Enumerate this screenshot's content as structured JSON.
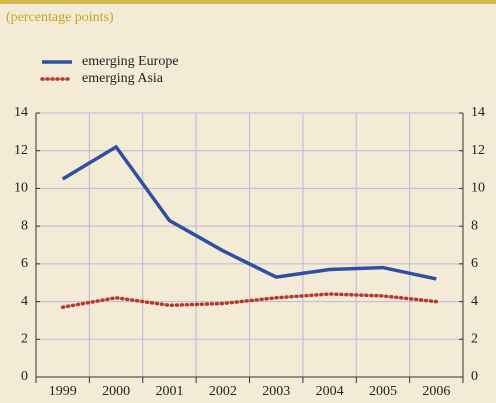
{
  "chart_data": {
    "type": "line",
    "subtitle": "(percentage points)",
    "categories": [
      "1999",
      "2000",
      "2001",
      "2002",
      "2003",
      "2004",
      "2005",
      "2006"
    ],
    "series": [
      {
        "name": "emerging Europe",
        "color": "#2e4fa3",
        "style": "solid",
        "values": [
          10.5,
          12.2,
          8.3,
          6.7,
          5.3,
          5.7,
          5.8,
          5.2
        ]
      },
      {
        "name": "emerging Asia",
        "color": "#b5392e",
        "style": "dotted",
        "values": [
          3.7,
          4.2,
          3.8,
          3.9,
          4.2,
          4.4,
          4.3,
          4.0
        ]
      }
    ],
    "ylim": [
      0,
      14
    ],
    "yticks": [
      0,
      2,
      4,
      6,
      8,
      10,
      12,
      14
    ],
    "y2lim": [
      0,
      14
    ],
    "y2ticks": [
      0,
      2,
      4,
      6,
      8,
      10,
      12,
      14
    ],
    "grid": true
  }
}
